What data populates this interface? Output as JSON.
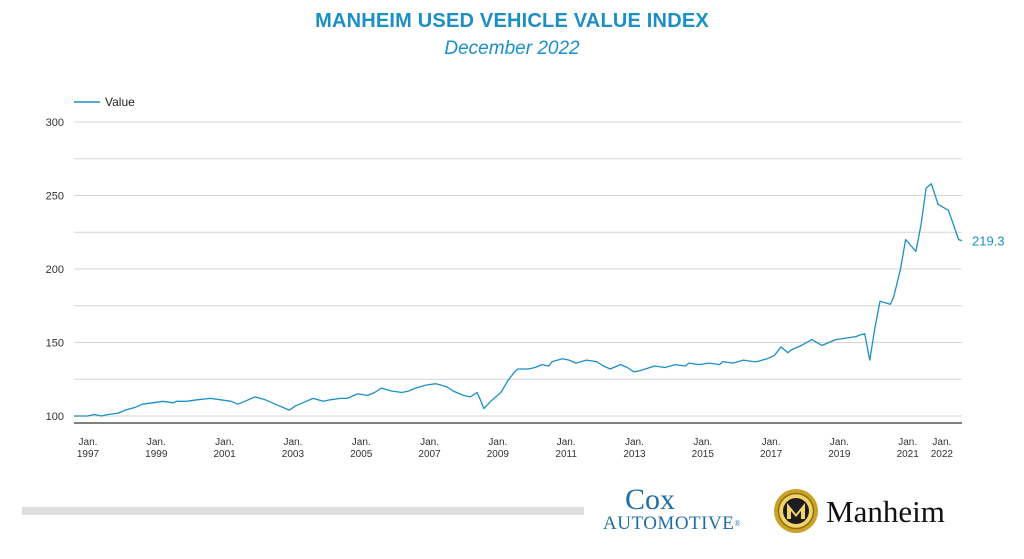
{
  "chart_data": {
    "type": "line",
    "title": "MANHEIM USED VEHICLE VALUE INDEX",
    "subtitle": "December 2022",
    "xlabel": "",
    "ylabel": "",
    "ylim": [
      100,
      300
    ],
    "yticks": [
      100,
      150,
      200,
      250,
      300
    ],
    "grid": true,
    "legend_position": "top-left",
    "line_color": "#1c8fc7",
    "x_ticks": [
      {
        "year": 1997,
        "line1": "Jan.",
        "line2": "1997"
      },
      {
        "year": 1999,
        "line1": "Jan.",
        "line2": "1999"
      },
      {
        "year": 2001,
        "line1": "Jan.",
        "line2": "2001"
      },
      {
        "year": 2003,
        "line1": "Jan.",
        "line2": "2003"
      },
      {
        "year": 2005,
        "line1": "Jan.",
        "line2": "2005"
      },
      {
        "year": 2007,
        "line1": "Jan.",
        "line2": "2007"
      },
      {
        "year": 2009,
        "line1": "Jan.",
        "line2": "2009"
      },
      {
        "year": 2011,
        "line1": "Jan.",
        "line2": "2011"
      },
      {
        "year": 2013,
        "line1": "Jan.",
        "line2": "2013"
      },
      {
        "year": 2015,
        "line1": "Jan.",
        "line2": "2015"
      },
      {
        "year": 2017,
        "line1": "Jan.",
        "line2": "2017"
      },
      {
        "year": 2019,
        "line1": "Jan.",
        "line2": "2019"
      },
      {
        "year": 2021,
        "line1": "Jan.",
        "line2": "2021"
      },
      {
        "year": 2022,
        "line1": "Jan.",
        "line2": "2022"
      }
    ],
    "end_label": "219.3",
    "series": [
      {
        "name": "Value",
        "points": [
          [
            1997.0,
            100
          ],
          [
            1997.4,
            100
          ],
          [
            1997.6,
            101
          ],
          [
            1997.8,
            100
          ],
          [
            1998.0,
            101
          ],
          [
            1998.3,
            102
          ],
          [
            1998.5,
            104
          ],
          [
            1998.8,
            106
          ],
          [
            1999.0,
            108
          ],
          [
            1999.3,
            109
          ],
          [
            1999.6,
            110
          ],
          [
            1999.9,
            109
          ],
          [
            2000.0,
            110
          ],
          [
            2000.3,
            110
          ],
          [
            2000.6,
            111
          ],
          [
            2001.0,
            112
          ],
          [
            2001.3,
            111
          ],
          [
            2001.6,
            110
          ],
          [
            2001.8,
            108
          ],
          [
            2002.0,
            110
          ],
          [
            2002.3,
            113
          ],
          [
            2002.6,
            111
          ],
          [
            2002.9,
            108
          ],
          [
            2003.0,
            107
          ],
          [
            2003.3,
            104
          ],
          [
            2003.5,
            107
          ],
          [
            2003.8,
            110
          ],
          [
            2004.0,
            112
          ],
          [
            2004.3,
            110
          ],
          [
            2004.5,
            111
          ],
          [
            2004.8,
            112
          ],
          [
            2005.0,
            112
          ],
          [
            2005.3,
            115
          ],
          [
            2005.6,
            114
          ],
          [
            2005.8,
            116
          ],
          [
            2006.0,
            119
          ],
          [
            2006.3,
            117
          ],
          [
            2006.6,
            116
          ],
          [
            2006.8,
            117
          ],
          [
            2007.0,
            119
          ],
          [
            2007.3,
            121
          ],
          [
            2007.6,
            122
          ],
          [
            2007.9,
            120
          ],
          [
            2008.1,
            117
          ],
          [
            2008.4,
            114
          ],
          [
            2008.6,
            113
          ],
          [
            2008.8,
            116
          ],
          [
            2008.9,
            111
          ],
          [
            2009.0,
            105
          ],
          [
            2009.2,
            110
          ],
          [
            2009.5,
            116
          ],
          [
            2009.7,
            124
          ],
          [
            2009.9,
            130
          ],
          [
            2010.0,
            132
          ],
          [
            2010.3,
            132
          ],
          [
            2010.5,
            133
          ],
          [
            2010.7,
            135
          ],
          [
            2010.9,
            134
          ],
          [
            2011.0,
            137
          ],
          [
            2011.3,
            139
          ],
          [
            2011.5,
            138
          ],
          [
            2011.7,
            136
          ],
          [
            2012.0,
            138
          ],
          [
            2012.3,
            137
          ],
          [
            2012.5,
            134
          ],
          [
            2012.7,
            132
          ],
          [
            2013.0,
            135
          ],
          [
            2013.2,
            133
          ],
          [
            2013.4,
            130
          ],
          [
            2013.6,
            131
          ],
          [
            2014.0,
            134
          ],
          [
            2014.3,
            133
          ],
          [
            2014.6,
            135
          ],
          [
            2014.9,
            134
          ],
          [
            2015.0,
            136
          ],
          [
            2015.3,
            135
          ],
          [
            2015.6,
            136
          ],
          [
            2015.9,
            135
          ],
          [
            2016.0,
            137
          ],
          [
            2016.3,
            136
          ],
          [
            2016.6,
            138
          ],
          [
            2016.9,
            137
          ],
          [
            2017.0,
            137
          ],
          [
            2017.3,
            139
          ],
          [
            2017.5,
            141
          ],
          [
            2017.7,
            147
          ],
          [
            2017.9,
            143
          ],
          [
            2018.0,
            145
          ],
          [
            2018.3,
            148
          ],
          [
            2018.6,
            152
          ],
          [
            2018.9,
            148
          ],
          [
            2019.0,
            149
          ],
          [
            2019.3,
            152
          ],
          [
            2019.6,
            153
          ],
          [
            2019.9,
            154
          ],
          [
            2020.0,
            155
          ],
          [
            2020.15,
            156
          ],
          [
            2020.3,
            138
          ],
          [
            2020.45,
            160
          ],
          [
            2020.6,
            178
          ],
          [
            2020.75,
            177
          ],
          [
            2020.9,
            176
          ],
          [
            2021.0,
            181
          ],
          [
            2021.2,
            200
          ],
          [
            2021.35,
            220
          ],
          [
            2021.5,
            216
          ],
          [
            2021.65,
            212
          ],
          [
            2021.8,
            230
          ],
          [
            2021.95,
            255
          ],
          [
            2022.1,
            258
          ],
          [
            2022.3,
            244
          ],
          [
            2022.45,
            242
          ],
          [
            2022.6,
            240
          ],
          [
            2022.75,
            230
          ],
          [
            2022.9,
            220
          ],
          [
            2023.0,
            219.3
          ]
        ]
      }
    ]
  },
  "brand": {
    "cox_top": "Cox",
    "cox_bottom": "AUTOMOTIVE",
    "cox_reg": "®",
    "manheim": "Manheim"
  }
}
